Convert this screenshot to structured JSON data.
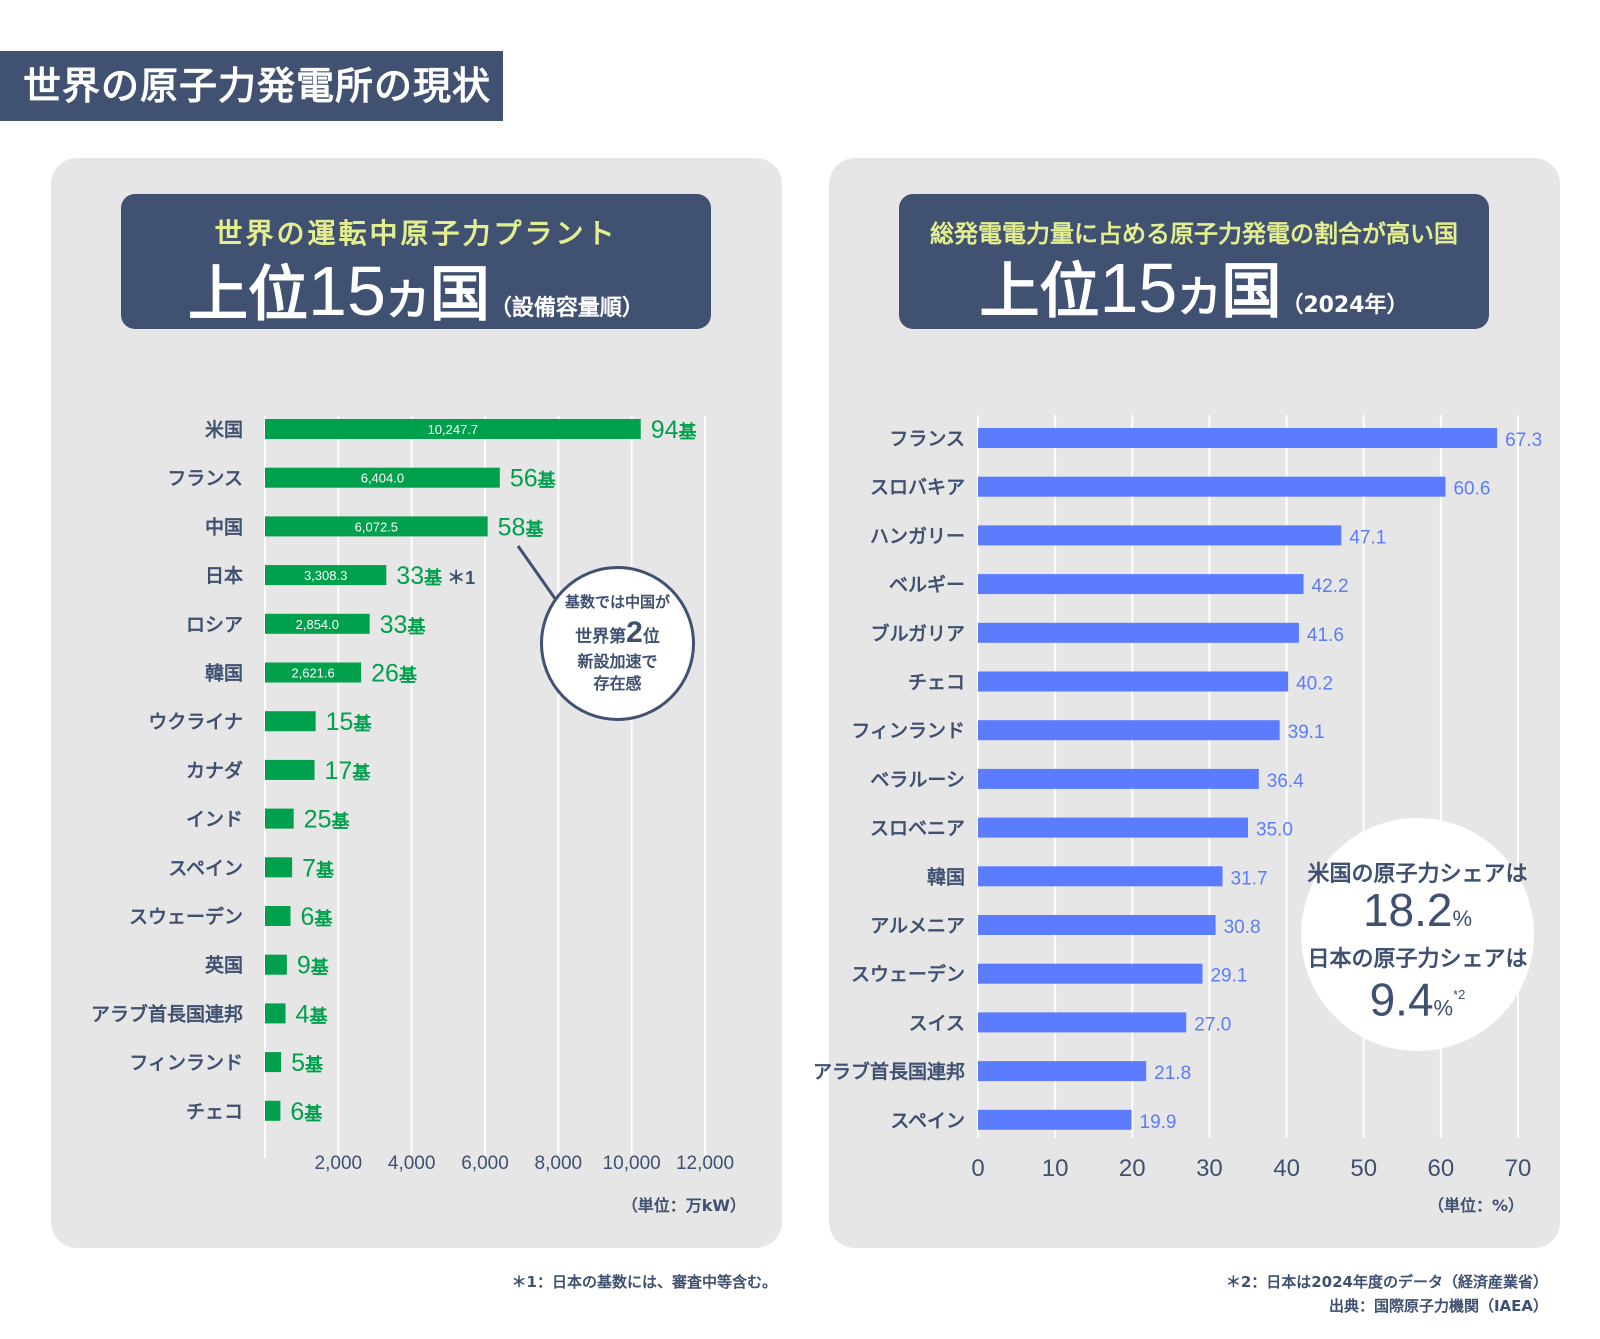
{
  "page_title": "世界の原子力発電所の現状",
  "left_panel": {
    "header_sub": "世界の運転中原子力プラント",
    "header_main_prefix": "上位",
    "header_main_number": "15",
    "header_main_ka": "カ",
    "header_main_koku": "国",
    "header_main_note": "（設備容量順）",
    "unit_note": "（単位：万kW）",
    "callout": {
      "line1": "基数では中国が",
      "line2_prefix": "世界第",
      "line2_number": "2",
      "line2_suffix": "位",
      "line3": "新設加速で",
      "line4": "存在感"
    }
  },
  "right_panel": {
    "header_sub": "総発電電力量に占める原子力発電の割合が高い国",
    "header_main_prefix": "上位",
    "header_main_number": "15",
    "header_main_ka": "カ",
    "header_main_koku": "国",
    "header_main_note": "（2024年）",
    "unit_note": "（単位：%）",
    "share_circle": {
      "us_label": "米国の原子力シェアは",
      "us_value": "18.2",
      "jp_label": "日本の原子力シェアは",
      "jp_value": "9.4",
      "percent": "%",
      "jp_note": "*2"
    }
  },
  "footnotes": {
    "note1": "＊1：日本の基数には、審査中等含む。",
    "note2": "＊2：日本は2024年度のデータ（経済産業省）",
    "source": "出典：国際原子力機関（IAEA）"
  },
  "chart_data": [
    {
      "type": "bar",
      "orientation": "horizontal",
      "title": "世界の運転中原子力プラント 上位15カ国（設備容量順）",
      "xlabel": "（単位：万kW）",
      "ylabel": "",
      "xlim": [
        0,
        13000
      ],
      "xticks": [
        2000,
        4000,
        6000,
        8000,
        10000,
        12000
      ],
      "xtick_labels": [
        "2,000",
        "4,000",
        "6,000",
        "8,000",
        "10,000",
        "12,000"
      ],
      "grid": true,
      "bar_color": "#00a04c",
      "categories": [
        "米国",
        "フランス",
        "中国",
        "日本",
        "ロシア",
        "韓国",
        "ウクライナ",
        "カナダ",
        "インド",
        "スペイン",
        "スウェーデン",
        "英国",
        "アラブ首長国連邦",
        "フィンランド",
        "チェコ"
      ],
      "values": [
        10247.7,
        6404.0,
        6072.5,
        3308.3,
        2854.0,
        2621.6,
        1381.8,
        1351.0,
        782.0,
        739.7,
        695.2,
        596.0,
        560.0,
        439.4,
        420.0
      ],
      "value_labels": [
        "10,247.7",
        "6,404.0",
        "6,072.5",
        "3,308.3",
        "2,854.0",
        "2,621.6",
        "",
        "",
        "",
        "",
        "",
        "",
        "",
        "",
        ""
      ],
      "reactor_counts": [
        94,
        56,
        58,
        33,
        33,
        26,
        15,
        17,
        25,
        7,
        6,
        9,
        4,
        5,
        6
      ],
      "reactor_unit": "基",
      "reactor_note_index": 3,
      "reactor_note": "＊1"
    },
    {
      "type": "bar",
      "orientation": "horizontal",
      "title": "総発電電力量に占める原子力発電の割合が高い国 上位15カ国（2024年）",
      "xlabel": "（単位：%）",
      "ylabel": "",
      "xlim": [
        0,
        70
      ],
      "xticks": [
        0,
        10,
        20,
        30,
        40,
        50,
        60,
        70
      ],
      "grid": true,
      "bar_color": "#5b7cff",
      "categories": [
        "フランス",
        "スロバキア",
        "ハンガリー",
        "ベルギー",
        "ブルガリア",
        "チェコ",
        "フィンランド",
        "ベラルーシ",
        "スロベニア",
        "韓国",
        "アルメニア",
        "スウェーデン",
        "スイス",
        "アラブ首長国連邦",
        "スペイン"
      ],
      "values": [
        67.3,
        60.6,
        47.1,
        42.2,
        41.6,
        40.2,
        39.1,
        36.4,
        35.0,
        31.7,
        30.8,
        29.1,
        27.0,
        21.8,
        19.9
      ],
      "value_labels": [
        "67.3",
        "60.6",
        "47.1",
        "42.2",
        "41.6",
        "40.2",
        "39.1",
        "36.4",
        "35.0",
        "31.7",
        "30.8",
        "29.1",
        "27.0",
        "21.8",
        "19.9"
      ]
    }
  ]
}
